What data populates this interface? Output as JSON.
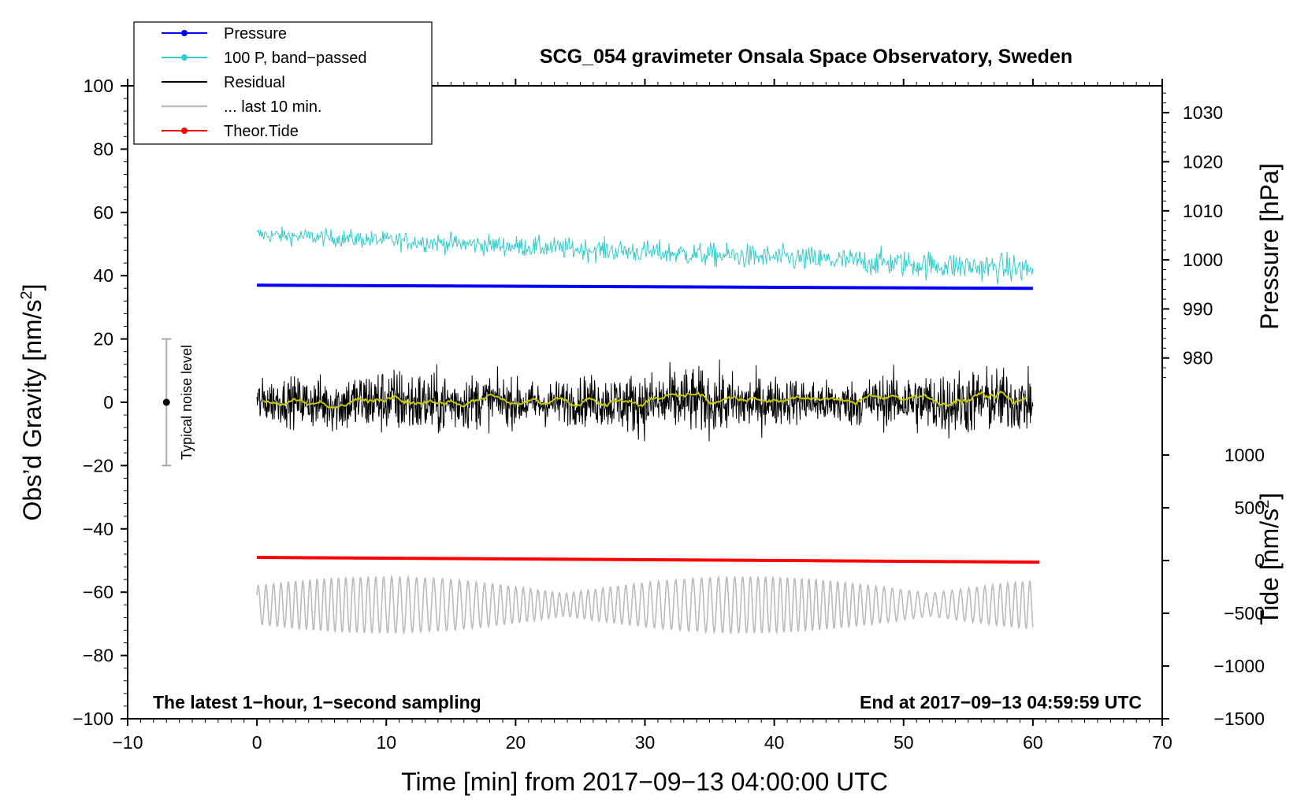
{
  "chart_data": {
    "type": "line",
    "title": "SCG_054 gravimeter Onsala Space Observatory, Sweden",
    "xlabel": "Time [min] from 2017−09−13 04:00:00 UTC",
    "ylabel_left": "Obs’d Gravity [nm/s",
    "ylabel_left_sup": "2",
    "ylabel_left_close": "]",
    "ylabel_right_pressure": "Pressure [hPa]",
    "ylabel_right_tide": "Tide [nm/s",
    "ylabel_right_tide_sup": "2",
    "ylabel_right_tide_close": "]",
    "xlim": [
      -10,
      70
    ],
    "ylim": [
      -100,
      100
    ],
    "pressure_axis": {
      "ticks": [
        980,
        990,
        1000,
        1010,
        1020,
        1030
      ],
      "gravity_at_1000": 45,
      "gravity_per_hpa": 1.55
    },
    "tide_axis": {
      "ticks": [
        -1500,
        -1000,
        -500,
        0,
        500,
        1000
      ],
      "gravity_at_0": -50,
      "gravity_per_unit": 0.03333
    },
    "x_ticks": [
      -10,
      0,
      10,
      20,
      30,
      40,
      50,
      60,
      70
    ],
    "x_tick_labels": [
      "−10",
      "0",
      "10",
      "20",
      "30",
      "40",
      "50",
      "60",
      "70"
    ],
    "y_ticks": [
      -100,
      -80,
      -60,
      -40,
      -20,
      0,
      20,
      40,
      60,
      80,
      100
    ],
    "y_tick_labels": [
      "−100",
      "−80",
      "−60",
      "−40",
      "−20",
      "0",
      "20",
      "40",
      "60",
      "80",
      "100"
    ],
    "pressure_tick_labels": [
      "980",
      "990",
      "1000",
      "1010",
      "1020",
      "1030"
    ],
    "tide_tick_labels": [
      "−1500",
      "−1000",
      "−500",
      "0",
      "500",
      "1000"
    ],
    "series": [
      {
        "name": "Pressure",
        "color": "#0000ff",
        "start": [
          0,
          37
        ],
        "end": [
          60,
          36
        ]
      },
      {
        "name": "100 P, band−passed",
        "color": "#33cccc",
        "center_start": 53,
        "center_end": 42,
        "amplitude": 3.5
      },
      {
        "name": "Residual",
        "color": "#000000",
        "center": 0,
        "amplitude": 7
      },
      {
        "name": "... last 10 min.",
        "color": "#bbbbbb",
        "center": -64,
        "amplitude": 6
      },
      {
        "name": "Theor.Tide",
        "color": "#ff0000",
        "start": [
          0,
          -49
        ],
        "end": [
          60.5,
          -50.5
        ]
      },
      {
        "name": "running mean",
        "color": "#c8c800",
        "center": 0,
        "amplitude": 1
      }
    ],
    "legend": [
      {
        "label": "Pressure",
        "color": "#0000ff",
        "marker": "dot"
      },
      {
        "label": "100 P, band−passed",
        "color": "#33cccc",
        "marker": "dot"
      },
      {
        "label": "Residual",
        "color": "#000000",
        "marker": "none"
      },
      {
        "label": "... last 10 min.",
        "color": "#bbbbbb",
        "marker": "none"
      },
      {
        "label": "Theor.Tide",
        "color": "#ff0000",
        "marker": "dot"
      }
    ],
    "legend_position": "top-left",
    "noise_bar": {
      "x": -7,
      "low": -20,
      "high": 20,
      "label": "Typical noise level"
    },
    "note_left": "The latest 1−hour, 1−second sampling",
    "note_right": "End at 2017−09−13 04:59:59 UTC"
  }
}
